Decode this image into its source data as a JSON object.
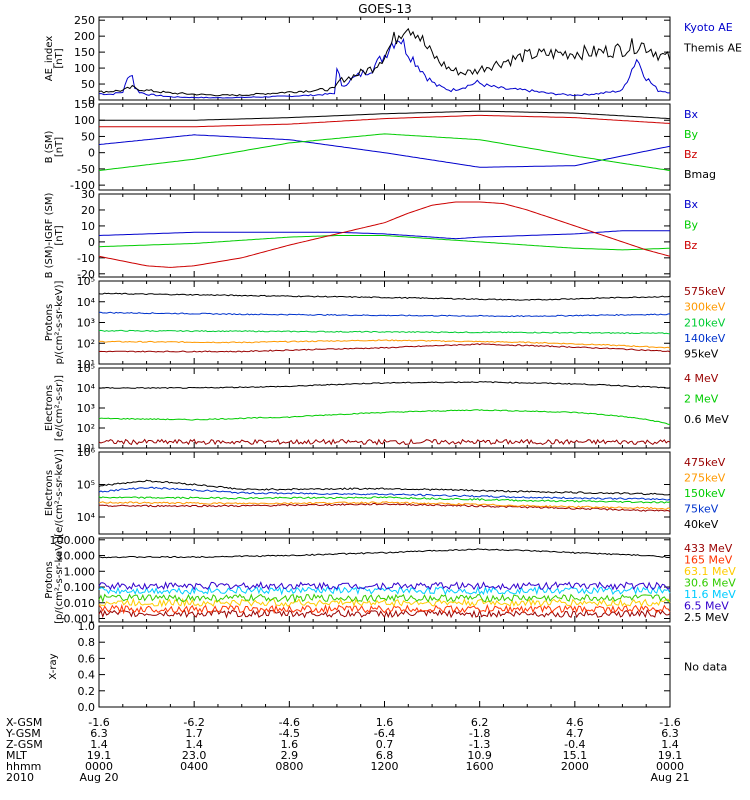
{
  "title": "GOES-13",
  "chart_data": [
    {
      "type": "line",
      "ylabel": [
        "AE_index",
        "[nT]"
      ],
      "yticks": [
        "0",
        "50",
        "100",
        "150",
        "200",
        "250"
      ],
      "ylim": [
        0,
        260
      ],
      "series": [
        {
          "name": "Kyoto AE",
          "color": "#0000cc",
          "x": [
            0,
            0.5,
            1,
            1.35,
            1.5,
            1.7,
            2,
            3,
            4,
            5,
            6,
            7,
            8,
            9,
            9.9,
            10,
            10.2,
            10.5,
            11,
            11.5,
            12,
            12.3,
            12.6,
            13,
            13.3,
            13.8,
            14.2,
            14.8,
            15.3,
            15.9,
            16.3,
            17,
            18,
            19,
            20,
            21,
            21.5,
            22,
            22.3,
            22.6,
            23,
            23.5,
            24
          ],
          "y": [
            20,
            18,
            25,
            95,
            40,
            25,
            18,
            10,
            8,
            7,
            8,
            10,
            12,
            15,
            20,
            110,
            40,
            60,
            80,
            100,
            140,
            180,
            200,
            150,
            120,
            70,
            45,
            30,
            40,
            55,
            45,
            35,
            30,
            20,
            15,
            20,
            25,
            30,
            80,
            130,
            70,
            30,
            25
          ]
        },
        {
          "name": "Themis AE",
          "color": "#000000",
          "x": [
            0,
            1,
            1.4,
            1.6,
            2,
            3,
            4,
            5,
            6,
            7,
            8,
            9,
            9.9,
            10.1,
            10.5,
            11,
            11.5,
            12,
            12.5,
            12.9,
            13.3,
            13.8,
            14.3,
            14.8,
            15.3,
            15.8,
            16.3,
            17,
            18,
            19,
            20,
            21,
            21.5,
            22,
            22.5,
            22.8,
            23.2,
            23.6,
            24
          ],
          "y": [
            25,
            30,
            40,
            35,
            30,
            22,
            18,
            15,
            15,
            20,
            25,
            30,
            35,
            60,
            70,
            85,
            100,
            140,
            200,
            240,
            220,
            160,
            120,
            95,
            85,
            90,
            105,
            120,
            140,
            145,
            148,
            150,
            155,
            160,
            170,
            175,
            160,
            140,
            130
          ]
        }
      ]
    },
    {
      "type": "line",
      "ylabel": [
        "B (SM)",
        "[nT]"
      ],
      "yticks": [
        "-100",
        "-50",
        "0",
        "50",
        "100",
        "150"
      ],
      "ylim": [
        -115,
        150
      ],
      "series": [
        {
          "name": "Bx",
          "color": "#0000cc",
          "x": [
            0,
            4,
            8,
            12,
            16,
            20,
            24
          ],
          "y": [
            25,
            55,
            40,
            0,
            -45,
            -40,
            20
          ]
        },
        {
          "name": "By",
          "color": "#00cc00",
          "x": [
            0,
            4,
            8,
            12,
            16,
            20,
            24
          ],
          "y": [
            -55,
            -20,
            30,
            58,
            40,
            -10,
            -55
          ]
        },
        {
          "name": "Bz",
          "color": "#cc0000",
          "x": [
            0,
            4,
            8,
            12,
            16,
            20,
            24
          ],
          "y": [
            80,
            80,
            88,
            105,
            115,
            108,
            90
          ]
        },
        {
          "name": "Bmag",
          "color": "#000000",
          "x": [
            0,
            4,
            8,
            12,
            16,
            20,
            24
          ],
          "y": [
            100,
            100,
            108,
            120,
            128,
            122,
            105
          ]
        }
      ]
    },
    {
      "type": "line",
      "ylabel": [
        "B (SM)-IGRF (SM)",
        "[nT]"
      ],
      "yticks": [
        "-20",
        "-10",
        "0",
        "10",
        "20",
        "30"
      ],
      "ylim": [
        -22,
        30
      ],
      "series": [
        {
          "name": "Bx",
          "color": "#0000cc",
          "x": [
            0,
            2,
            4,
            6,
            8,
            10,
            12,
            14,
            15,
            16,
            18,
            20,
            22,
            24
          ],
          "y": [
            4,
            5,
            6,
            6,
            6,
            6,
            5,
            3,
            2,
            3,
            4,
            5,
            7,
            7
          ]
        },
        {
          "name": "By",
          "color": "#00cc00",
          "x": [
            0,
            2,
            4,
            6,
            8,
            10,
            12,
            14,
            16,
            18,
            20,
            22,
            24
          ],
          "y": [
            -3,
            -2,
            -1,
            1,
            3,
            4,
            4,
            2,
            0,
            -2,
            -4,
            -5,
            -4
          ]
        },
        {
          "name": "Bz",
          "color": "#cc0000",
          "x": [
            0,
            1,
            2,
            3,
            4,
            6,
            8,
            10,
            12,
            13,
            14,
            15,
            16,
            17,
            18,
            20,
            22,
            23,
            24
          ],
          "y": [
            -9,
            -12,
            -15,
            -16,
            -15,
            -10,
            -2,
            5,
            12,
            18,
            23,
            25,
            25,
            24,
            20,
            10,
            0,
            -5,
            -9
          ]
        }
      ]
    },
    {
      "type": "line",
      "ylabel": [
        "Protons",
        "p/(cm²-s-sr-keV)]"
      ],
      "yscale": "log",
      "yticks": [
        "10¹",
        "10²",
        "10³",
        "10⁴",
        "10⁵"
      ],
      "ylim": [
        10,
        100000
      ],
      "series": [
        {
          "name": "575keV",
          "color": "#990000",
          "x": [
            0,
            24
          ],
          "y": [
            0,
            0
          ],
          "hidden": true
        },
        {
          "name": "300keV",
          "color": "#ff9900",
          "x": [
            0,
            6,
            12,
            18,
            24
          ],
          "y": [
            120,
            110,
            140,
            110,
            60
          ]
        },
        {
          "name": "210keV",
          "color": "#00cc33",
          "x": [
            0,
            6,
            12,
            18,
            24
          ],
          "y": [
            400,
            380,
            350,
            330,
            300
          ]
        },
        {
          "name": "140keV",
          "color": "#0033cc",
          "x": [
            0,
            6,
            12,
            18,
            24
          ],
          "y": [
            3000,
            2500,
            2200,
            2000,
            2500
          ]
        },
        {
          "name": "95keV",
          "color": "#000000",
          "x": [
            0,
            6,
            12,
            18,
            24
          ],
          "y": [
            25000,
            20000,
            16000,
            12000,
            18000
          ]
        },
        {
          "name": "575keV",
          "color": "#990000",
          "x": [
            0,
            6,
            12,
            16,
            24
          ],
          "y": [
            40,
            40,
            60,
            90,
            40
          ]
        }
      ]
    },
    {
      "type": "line",
      "ylabel": [
        "Electrons",
        "[e/(cm²-s-sr)]"
      ],
      "yscale": "log",
      "yticks": [
        "10¹",
        "10²",
        "10³",
        "10⁴",
        "10⁵"
      ],
      "ylim": [
        10,
        100000
      ],
      "series": [
        {
          "name": "4 MeV",
          "color": "#990000",
          "x": [
            0,
            24
          ],
          "y": [
            20,
            20
          ]
        },
        {
          "name": "2 MeV",
          "color": "#00cc00",
          "x": [
            0,
            4,
            8,
            12,
            16,
            20,
            24
          ],
          "y": [
            300,
            260,
            350,
            600,
            800,
            600,
            150
          ]
        },
        {
          "name": "0.6 MeV",
          "color": "#000000",
          "x": [
            0,
            4,
            8,
            12,
            16,
            20,
            24
          ],
          "y": [
            10000,
            10000,
            12000,
            18000,
            20000,
            16000,
            10000
          ]
        }
      ]
    },
    {
      "type": "line",
      "ylabel": [
        "Electrons",
        "[e/(cm²-s-sr-keV)]"
      ],
      "yscale": "log",
      "yticks": [
        "10⁴",
        "10⁵",
        "10⁶"
      ],
      "ylim": [
        3000,
        1000000
      ],
      "series": [
        {
          "name": "475keV",
          "color": "#990000",
          "x": [
            0,
            6,
            12,
            18,
            24
          ],
          "y": [
            22000,
            22000,
            25000,
            20000,
            15000
          ]
        },
        {
          "name": "275keV",
          "color": "#ff9900",
          "x": [
            0,
            6,
            12,
            18,
            24
          ],
          "y": [
            28000,
            26000,
            28000,
            22000,
            18000
          ]
        },
        {
          "name": "150keV",
          "color": "#00cc00",
          "x": [
            0,
            6,
            12,
            18,
            24
          ],
          "y": [
            40000,
            38000,
            40000,
            32000,
            28000
          ]
        },
        {
          "name": "75keV",
          "color": "#0033cc",
          "x": [
            0,
            2,
            6,
            12,
            18,
            24
          ],
          "y": [
            60000,
            80000,
            55000,
            50000,
            40000,
            35000
          ]
        },
        {
          "name": "40keV",
          "color": "#000000",
          "x": [
            0,
            2,
            6,
            12,
            18,
            24
          ],
          "y": [
            90000,
            130000,
            70000,
            75000,
            60000,
            50000
          ]
        }
      ]
    },
    {
      "type": "line",
      "ylabel": [
        "Protons",
        "[p/(cm²-s-sr-keV)]"
      ],
      "yscale": "log",
      "yticks": [
        "0.001",
        "0.010",
        "0.100",
        "1.000",
        "10.000",
        "100.000"
      ],
      "ylim": [
        0.0006,
        130
      ],
      "series": [
        {
          "name": "433 MeV",
          "color": "#990000",
          "x": [
            0,
            24
          ],
          "y": [
            0.002,
            0.002
          ]
        },
        {
          "name": "165 MeV",
          "color": "#ff3300",
          "x": [
            0,
            24
          ],
          "y": [
            0.004,
            0.004
          ]
        },
        {
          "name": "63.1 MeV",
          "color": "#ffcc00",
          "x": [
            0,
            24
          ],
          "y": [
            0.01,
            0.01
          ]
        },
        {
          "name": "30.6 MeV",
          "color": "#33cc00",
          "x": [
            0,
            24
          ],
          "y": [
            0.02,
            0.02
          ]
        },
        {
          "name": "11.6 MeV",
          "color": "#00ccff",
          "x": [
            0,
            24
          ],
          "y": [
            0.06,
            0.06
          ]
        },
        {
          "name": "6.5 MeV",
          "color": "#3300cc",
          "x": [
            0,
            24
          ],
          "y": [
            0.12,
            0.12
          ]
        },
        {
          "name": "2.5 MeV",
          "color": "#000000",
          "x": [
            0,
            4,
            8,
            12,
            16,
            20,
            24
          ],
          "y": [
            8,
            8,
            10,
            15,
            25,
            15,
            8
          ]
        }
      ]
    },
    {
      "type": "line",
      "ylabel": [
        "X-ray"
      ],
      "yticks": [
        "0.0",
        "0.2",
        "0.4",
        "0.6",
        "0.8",
        "1.0"
      ],
      "ylim": [
        0,
        1
      ],
      "series": [],
      "note": "No data"
    }
  ],
  "legend_labels": [
    [
      "Kyoto AE",
      "Themis AE"
    ],
    [
      "Bx",
      "By",
      "Bz",
      "Bmag"
    ],
    [
      "Bx",
      "By",
      "Bz"
    ],
    [
      "575keV",
      "300keV",
      "210keV",
      "140keV",
      "95keV"
    ],
    [
      "4 MeV",
      "2 MeV",
      "0.6 MeV"
    ],
    [
      "475keV",
      "275keV",
      "150keV",
      "75keV",
      "40keV"
    ],
    [
      "433 MeV",
      "165 MeV",
      "63.1 MeV",
      "30.6 MeV",
      "11.6 MeV",
      "6.5 MeV",
      "2.5 MeV"
    ],
    [
      "No data"
    ]
  ],
  "legend_colors": [
    [
      "#0000cc",
      "#000000"
    ],
    [
      "#0000cc",
      "#00cc00",
      "#cc0000",
      "#000000"
    ],
    [
      "#0000cc",
      "#00cc00",
      "#cc0000"
    ],
    [
      "#990000",
      "#ff9900",
      "#00cc33",
      "#0033cc",
      "#000000"
    ],
    [
      "#990000",
      "#00cc00",
      "#000000"
    ],
    [
      "#990000",
      "#ff9900",
      "#00cc00",
      "#0033cc",
      "#000000"
    ],
    [
      "#990000",
      "#ff3300",
      "#ffcc00",
      "#33cc00",
      "#00ccff",
      "#3300cc",
      "#000000"
    ],
    [
      "#000000"
    ]
  ],
  "ephemeris": {
    "row_labels": [
      "X-GSM",
      "Y-GSM",
      "Z-GSM",
      "MLT",
      "hhmm",
      "2010"
    ],
    "columns": [
      [
        "-1.6",
        "6.3",
        "1.4",
        "19.1",
        "0000",
        "Aug 20"
      ],
      [
        "-6.2",
        "1.7",
        "1.4",
        "23.0",
        "0400",
        ""
      ],
      [
        "-4.6",
        "-4.5",
        "1.6",
        "2.9",
        "0800",
        ""
      ],
      [
        "1.6",
        "-6.4",
        "0.7",
        "6.8",
        "1200",
        ""
      ],
      [
        "6.2",
        "-1.8",
        "-1.3",
        "10.9",
        "1600",
        ""
      ],
      [
        "4.6",
        "4.7",
        "-0.4",
        "15.1",
        "2000",
        ""
      ],
      [
        "-1.6",
        "6.3",
        "1.4",
        "19.1",
        "0000",
        "Aug 21"
      ]
    ]
  }
}
